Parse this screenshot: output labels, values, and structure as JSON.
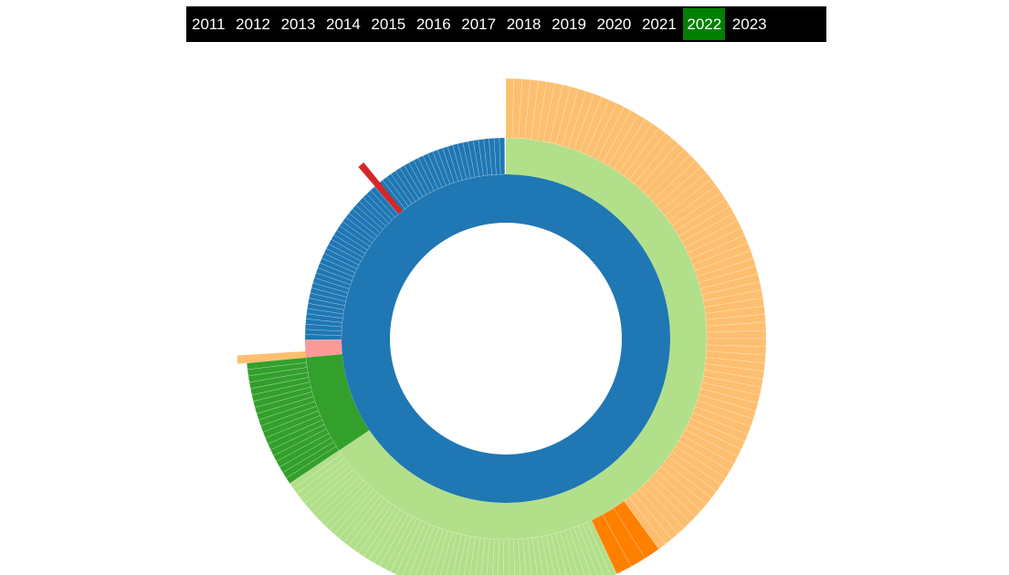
{
  "year_selector": {
    "years": [
      "2011",
      "2012",
      "2013",
      "2014",
      "2015",
      "2016",
      "2017",
      "2018",
      "2019",
      "2020",
      "2021",
      "2022",
      "2023"
    ],
    "selected": "2022",
    "selected_color": "#008000"
  },
  "chart_data": {
    "type": "sunburst",
    "title": "",
    "rings": [
      {
        "level": 1,
        "segments": [
          {
            "share": 1.0,
            "color": "#1f77b4",
            "leaves": 1
          }
        ]
      },
      {
        "level": 2,
        "segments": [
          {
            "share": 0.656,
            "color": "#b2df8a",
            "leaves": 1
          },
          {
            "share": 0.079,
            "color": "#33a02c",
            "leaves": 1
          },
          {
            "share": 0.014,
            "color": "#fb9a99",
            "leaves": 1
          },
          {
            "share": 0.25,
            "color": "#1f77b4",
            "leaves": 60
          }
        ]
      },
      {
        "level": 3,
        "segments": [
          {
            "share": 0.4,
            "color": "#fdbf6f",
            "leaves": 80
          },
          {
            "share": 0.03,
            "color": "#ff7f00",
            "leaves": 3
          },
          {
            "share": 0.226,
            "color": "#b2df8a",
            "leaves": 60
          },
          {
            "share": 0.079,
            "color": "#33a02c",
            "leaves": 20
          },
          {
            "share": 0.005,
            "color": "#fdbf6f",
            "leaves": 1,
            "spike": true
          }
        ]
      }
    ],
    "spikes": [
      {
        "share": 0.005,
        "color": "#d62728"
      }
    ]
  }
}
